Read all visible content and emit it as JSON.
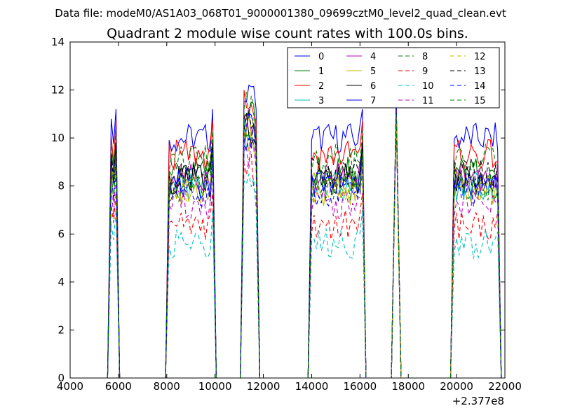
{
  "header": {
    "data_file": "Data file: modeM0/AS1A03_068T01_9000001380_09699cztM0_level2_quad_clean.evt"
  },
  "chart_data": {
    "type": "line",
    "title": "Quadrant 2 module wise count rates with 100.0s bins.",
    "xlabel": "",
    "ylabel": "",
    "x_offset_label": "+2.377e8",
    "xlim": [
      4000,
      22000
    ],
    "ylim": [
      0,
      14
    ],
    "x_ticks": [
      4000,
      6000,
      8000,
      10000,
      12000,
      14000,
      16000,
      18000,
      20000,
      22000
    ],
    "y_ticks": [
      0,
      2,
      4,
      6,
      8,
      10,
      12,
      14
    ],
    "grid": false,
    "legend_position": "top-right",
    "legend_columns": 4,
    "bin_seconds": 100,
    "orbit_segments": [
      {
        "start": 5700,
        "end": 5900
      },
      {
        "start": 8100,
        "end": 9900
      },
      {
        "start": 11200,
        "end": 11700
      },
      {
        "start": 14000,
        "end": 16100
      },
      {
        "start": 17500,
        "end": 17500
      },
      {
        "start": 19900,
        "end": 21700
      }
    ],
    "series": [
      {
        "name": "0",
        "color": "#0000ff",
        "dash": "solid",
        "level": 10.0
      },
      {
        "name": "1",
        "color": "#008000",
        "dash": "solid",
        "level": 8.6
      },
      {
        "name": "2",
        "color": "#ff0000",
        "dash": "solid",
        "level": 9.3
      },
      {
        "name": "3",
        "color": "#00bfbf",
        "dash": "solid",
        "level": 8.0
      },
      {
        "name": "4",
        "color": "#bf00bf",
        "dash": "solid",
        "level": 8.4
      },
      {
        "name": "5",
        "color": "#bfbf00",
        "dash": "solid",
        "level": 7.8
      },
      {
        "name": "6",
        "color": "#000000",
        "dash": "solid",
        "level": 8.3
      },
      {
        "name": "7",
        "color": "#0000ff",
        "dash": "solid",
        "level": 8.1
      },
      {
        "name": "8",
        "color": "#008000",
        "dash": "dashed",
        "level": 9.1
      },
      {
        "name": "9",
        "color": "#ff0000",
        "dash": "dashed",
        "level": 6.4
      },
      {
        "name": "10",
        "color": "#00bfbf",
        "dash": "dashed",
        "level": 5.6
      },
      {
        "name": "11",
        "color": "#bf00bf",
        "dash": "dashed",
        "level": 7.2
      },
      {
        "name": "12",
        "color": "#bfbf00",
        "dash": "dashed",
        "level": 8.0
      },
      {
        "name": "13",
        "color": "#000000",
        "dash": "dashed",
        "level": 8.5
      },
      {
        "name": "14",
        "color": "#0000ff",
        "dash": "dashed",
        "level": 7.8
      },
      {
        "name": "15",
        "color": "#008000",
        "dash": "dashed",
        "level": 7.9
      }
    ]
  }
}
